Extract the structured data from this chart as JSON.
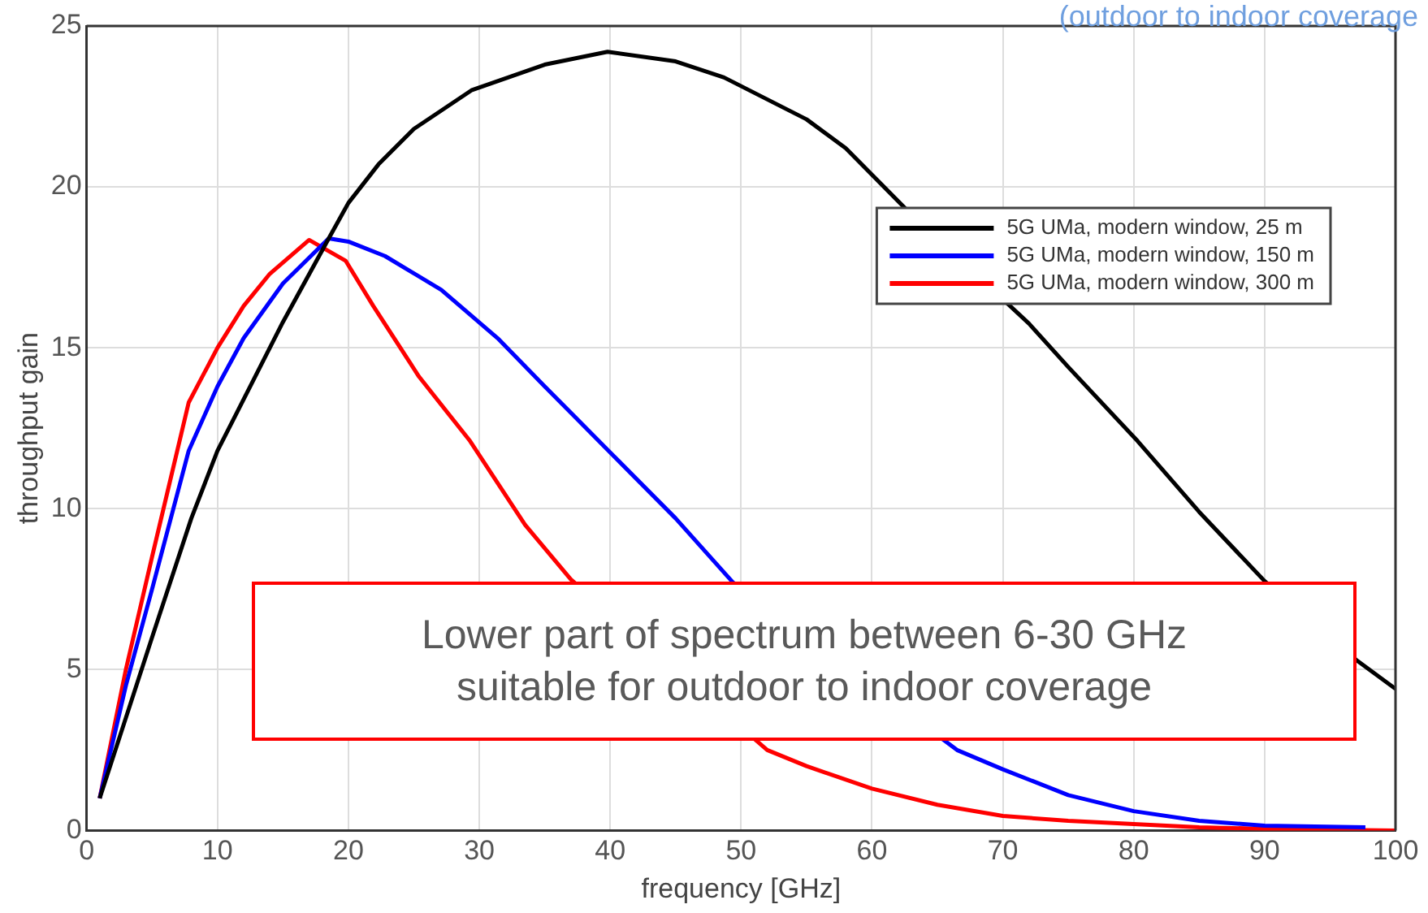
{
  "chart_data": {
    "type": "line",
    "xlabel": "frequency [GHz]",
    "ylabel": "throughput gain",
    "annotations": [
      "(outdoor to indoor coverage",
      "Lower part of spectrum between 6-30 GHz\nsuitable for outdoor to indoor coverage"
    ],
    "xlim": [
      0,
      100
    ],
    "xticks": [
      0,
      10,
      20,
      30,
      40,
      50,
      60,
      70,
      80,
      90,
      100
    ],
    "ylim": [
      0,
      25
    ],
    "yticks": [
      0,
      5,
      10,
      15,
      20,
      25
    ],
    "grid": true,
    "legend": "top right",
    "marker": "none",
    "line_style": "solid",
    "series": [
      {
        "name": "5G UMa, modern window, 25 m",
        "color": "#000000",
        "x": [
          1,
          5,
          8,
          10,
          15,
          18.5,
          20,
          22.3,
          25,
          29.4,
          35,
          39.8,
          45,
          48.7,
          55,
          58,
          62.5,
          72,
          75,
          80.3,
          85,
          90,
          97,
          100
        ],
        "values": [
          1,
          6,
          9.7,
          11.8,
          15.8,
          18.4,
          19.5,
          20.7,
          21.8,
          23.0,
          23.8,
          24.2,
          23.9,
          23.4,
          22.1,
          21.2,
          19.35,
          15.75,
          14.4,
          12.1,
          9.9,
          7.75,
          5.3,
          4.4
        ]
      },
      {
        "name": "5G UMa, modern window, 150 m",
        "color": "#0000ff",
        "x": [
          1,
          3,
          5,
          7.8,
          10,
          12,
          15,
          18.5,
          20,
          22.8,
          27.1,
          31.4,
          35,
          40,
          45,
          49.4,
          66.5,
          70,
          75,
          80,
          85,
          90,
          97.7
        ],
        "values": [
          1,
          4.5,
          7.5,
          11.8,
          13.8,
          15.3,
          17.0,
          18.4,
          18.3,
          17.85,
          16.8,
          15.3,
          13.8,
          11.75,
          9.7,
          7.7,
          2.5,
          1.9,
          1.1,
          0.6,
          0.3,
          0.15,
          0.1
        ]
      },
      {
        "name": "5G UMa, modern window, 300 m",
        "color": "#ff0000",
        "x": [
          1,
          3,
          5,
          7.8,
          10,
          12,
          14,
          17,
          19.8,
          21.9,
          25.4,
          29.3,
          33.5,
          37,
          52,
          55,
          60,
          65,
          70,
          75,
          80,
          85,
          90,
          100
        ],
        "values": [
          1,
          5,
          8.5,
          13.3,
          15,
          16.3,
          17.3,
          18.35,
          17.7,
          16.3,
          14.1,
          12.1,
          9.5,
          7.8,
          2.5,
          2.0,
          1.3,
          0.8,
          0.45,
          0.3,
          0.2,
          0.1,
          0.05,
          0
        ]
      }
    ]
  }
}
